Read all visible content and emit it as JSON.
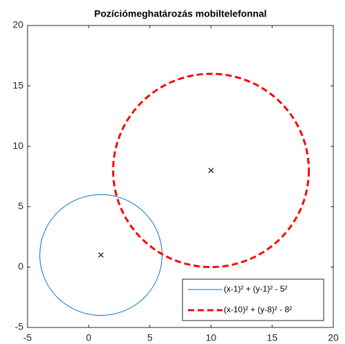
{
  "chart_data": {
    "type": "circle",
    "title": "Pozíciómeghatározás mobiltelefonnal",
    "xlim": [
      -5,
      20
    ],
    "ylim": [
      -5,
      20
    ],
    "xticks": [
      -5,
      0,
      5,
      10,
      15,
      20
    ],
    "yticks": [
      -5,
      0,
      5,
      10,
      15,
      20
    ],
    "grid": false,
    "legend": "southeast",
    "series": [
      {
        "name": "(x-1)² + (y-1)² - 5²",
        "color": "#0072bd",
        "dash": false,
        "center": [
          1,
          1
        ],
        "radius": 5
      },
      {
        "name": "(x-10)² + (y-8)² - 8²",
        "color": "#ff0000",
        "dash": true,
        "center": [
          10,
          8
        ],
        "radius": 8
      }
    ]
  }
}
